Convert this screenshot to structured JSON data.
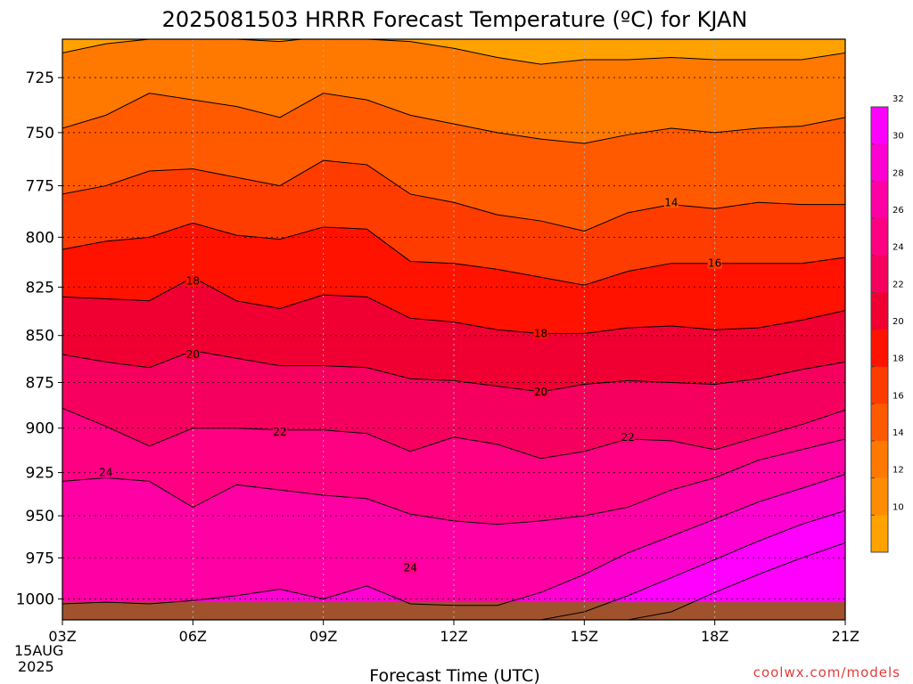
{
  "chart_data": {
    "type": "contour",
    "title": "2025081503 HRRR Forecast Temperature (ºC) for KJAN",
    "xlabel": "Forecast Time (UTC)",
    "ylabel": "",
    "x_ticks": [
      "03Z",
      "06Z",
      "09Z",
      "12Z",
      "15Z",
      "18Z",
      "21Z"
    ],
    "x_date_line1": "15AUG",
    "x_date_line2": "2025",
    "x_range_hours": [
      3,
      21
    ],
    "y_ticks": [
      725,
      750,
      775,
      800,
      825,
      850,
      875,
      900,
      925,
      950,
      975,
      1000
    ],
    "y_range_hpa": [
      708,
      1013
    ],
    "y_scale": "log-pressure",
    "grid": true,
    "surface_pressure_hpa": 1002,
    "hours": [
      3,
      4,
      5,
      6,
      7,
      8,
      9,
      10,
      11,
      12,
      13,
      14,
      15,
      16,
      17,
      18,
      19,
      20,
      21
    ],
    "isotherms": [
      {
        "temp": 12,
        "pressure": [
          714,
          710,
          708,
          708,
          708,
          709,
          707,
          708,
          709,
          712,
          716,
          719,
          717,
          717,
          716,
          717,
          717,
          717,
          714
        ]
      },
      {
        "temp": 14,
        "pressure": [
          748,
          742,
          732,
          735,
          738,
          743,
          732,
          735,
          742,
          746,
          750,
          753,
          755,
          751,
          748,
          750,
          748,
          747,
          743
        ]
      },
      {
        "temp": 16,
        "pressure": [
          779,
          775,
          768,
          767,
          771,
          775,
          763,
          765,
          779,
          783,
          789,
          792,
          797,
          788,
          784,
          786,
          783,
          784,
          784
        ]
      },
      {
        "temp": 18,
        "pressure": [
          806,
          802,
          800,
          793,
          799,
          801,
          795,
          796,
          812,
          813,
          816,
          820,
          824,
          817,
          813,
          813,
          813,
          813,
          810
        ]
      },
      {
        "temp": 20,
        "pressure": [
          830,
          831,
          832,
          820,
          832,
          836,
          829,
          830,
          841,
          843,
          847,
          849,
          849,
          846,
          845,
          847,
          846,
          842,
          837
        ]
      },
      {
        "temp": 22,
        "pressure": [
          860,
          864,
          867,
          858,
          862,
          866,
          866,
          867,
          873,
          874,
          877,
          880,
          876,
          874,
          875,
          876,
          873,
          868,
          864
        ]
      },
      {
        "temp": 24,
        "pressure": [
          889,
          899,
          910,
          900,
          900,
          901,
          901,
          903,
          913,
          905,
          909,
          917,
          913,
          906,
          907,
          912,
          905,
          898,
          890
        ]
      }
    ],
    "isotherms_lower": [
      {
        "temp": 26,
        "pressure": [
          930,
          928,
          930,
          945,
          932,
          935,
          938,
          940,
          949,
          953,
          955,
          953,
          950,
          945,
          935,
          928,
          918,
          912,
          906
        ]
      },
      {
        "temp": 28,
        "pressure": [
          1003,
          1002,
          1003,
          1001,
          998,
          994,
          1000,
          992,
          1003,
          1004,
          1004,
          996,
          985,
          972,
          962,
          952,
          942,
          934,
          926
        ]
      },
      {
        "temp": 30,
        "pressure": [
          1013,
          1013,
          1013,
          1013,
          1013,
          1013,
          1013,
          1013,
          1013,
          1013,
          1013,
          1013,
          1008,
          998,
          987,
          976,
          965,
          955,
          947
        ]
      },
      {
        "temp": 32,
        "pressure": [
          1013,
          1013,
          1013,
          1013,
          1013,
          1013,
          1013,
          1013,
          1013,
          1013,
          1013,
          1013,
          1013,
          1013,
          1008,
          996,
          985,
          975,
          966
        ]
      }
    ],
    "contour_labels": [
      {
        "text": "14",
        "hour": 17,
        "pressure": 783
      },
      {
        "text": "16",
        "hour": 18,
        "pressure": 813
      },
      {
        "text": "18",
        "hour": 6,
        "pressure": 822
      },
      {
        "text": "18",
        "hour": 14,
        "pressure": 849
      },
      {
        "text": "20",
        "hour": 6,
        "pressure": 860
      },
      {
        "text": "20",
        "hour": 14,
        "pressure": 880
      },
      {
        "text": "22",
        "hour": 8,
        "pressure": 902
      },
      {
        "text": "22",
        "hour": 16,
        "pressure": 905
      },
      {
        "text": "24",
        "hour": 4,
        "pressure": 925
      },
      {
        "text": "24",
        "hour": 11,
        "pressure": 981
      }
    ],
    "colorbar": {
      "ticks": [
        10,
        12,
        14,
        16,
        18,
        20,
        22,
        24,
        26,
        28,
        30,
        32
      ],
      "bins": [
        {
          "lo": 8,
          "hi": 10,
          "color": "#ffa200"
        },
        {
          "lo": 10,
          "hi": 12,
          "color": "#ff8c00"
        },
        {
          "lo": 12,
          "hi": 14,
          "color": "#ff7800"
        },
        {
          "lo": 14,
          "hi": 16,
          "color": "#ff5a00"
        },
        {
          "lo": 16,
          "hi": 18,
          "color": "#ff3c00"
        },
        {
          "lo": 18,
          "hi": 20,
          "color": "#ff1200"
        },
        {
          "lo": 20,
          "hi": 22,
          "color": "#f00032"
        },
        {
          "lo": 22,
          "hi": 24,
          "color": "#f5005f"
        },
        {
          "lo": 24,
          "hi": 26,
          "color": "#ff0082"
        },
        {
          "lo": 26,
          "hi": 28,
          "color": "#ff00a5"
        },
        {
          "lo": 28,
          "hi": 30,
          "color": "#ff00d2"
        },
        {
          "lo": 30,
          "hi": 34,
          "color": "#ff00ff"
        }
      ]
    }
  },
  "credit": "coolwx.com/models",
  "colors": {
    "ground": "#a0522d",
    "top_band": "#ffa200",
    "contour": "#000000"
  }
}
